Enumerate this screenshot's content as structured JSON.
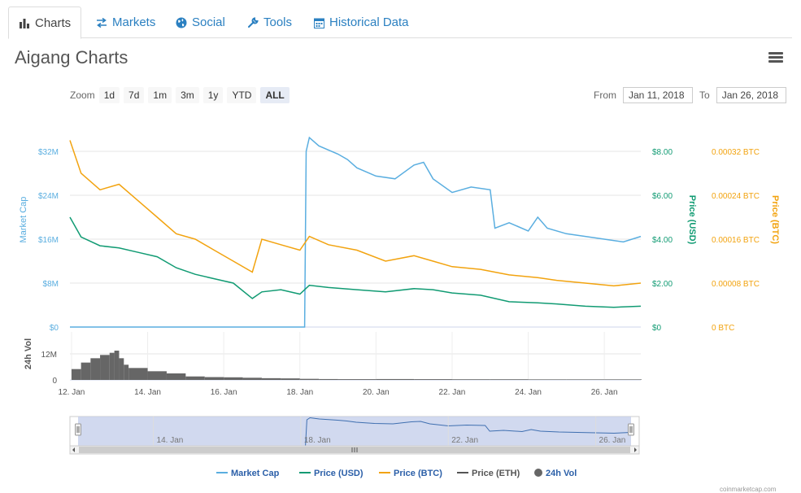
{
  "tabs": [
    {
      "label": "Charts",
      "icon": "bar-chart-icon",
      "active": true
    },
    {
      "label": "Markets",
      "icon": "exchange-arrows-icon",
      "active": false
    },
    {
      "label": "Social",
      "icon": "globe-icon",
      "active": false
    },
    {
      "label": "Tools",
      "icon": "wrench-icon",
      "active": false
    },
    {
      "label": "Historical Data",
      "icon": "calendar-icon",
      "active": false
    }
  ],
  "page_title": "Aigang Charts",
  "zoom": {
    "label": "Zoom",
    "buttons": [
      "1d",
      "7d",
      "1m",
      "3m",
      "1y",
      "YTD",
      "ALL"
    ],
    "selected": "ALL"
  },
  "range": {
    "from_label": "From",
    "from_value": "Jan 11, 2018",
    "to_label": "To",
    "to_value": "Jan 26, 2018"
  },
  "credit": "coinmarketcap.com",
  "colors": {
    "market_cap": "#5aaee0",
    "price_usd": "#119b73",
    "price_btc": "#f2a30f",
    "price_eth": "#555555",
    "volume": "#666666"
  },
  "chart_data": {
    "type": "line",
    "x_axis": {
      "ticks": [
        "12. Jan",
        "14. Jan",
        "16. Jan",
        "18. Jan",
        "20. Jan",
        "22. Jan",
        "24. Jan",
        "26. Jan"
      ],
      "range": [
        "2018-01-11T23:00",
        "2018-01-26T23:00"
      ]
    },
    "y_axes": {
      "market_cap": {
        "label": "Market Cap",
        "ticks": [
          "$0",
          "$8M",
          "$16M",
          "$24M",
          "$32M"
        ],
        "range": [
          0,
          32000000
        ]
      },
      "price_usd": {
        "label": "Price (USD)",
        "ticks": [
          "$0",
          "$2.00",
          "$4.00",
          "$6.00",
          "$8.00"
        ],
        "range": [
          0,
          8
        ]
      },
      "price_btc": {
        "label": "Price (BTC)",
        "ticks": [
          "0 BTC",
          "0.00008 BTC",
          "0.00016 BTC",
          "0.00024 BTC",
          "0.00032 BTC"
        ],
        "range": [
          0,
          0.00032
        ]
      },
      "volume": {
        "label": "24h Vol",
        "ticks": [
          "0",
          "12M"
        ],
        "range": [
          0,
          12000000
        ]
      }
    },
    "series": [
      {
        "name": "Market Cap",
        "axis": "market_cap",
        "points": [
          [
            "2018-01-11T23:00",
            0
          ],
          [
            "2018-01-14T00:00",
            0
          ],
          [
            "2018-01-16T00:00",
            0
          ],
          [
            "2018-01-18T00:00",
            0
          ],
          [
            "2018-01-18T03:00",
            0
          ],
          [
            "2018-01-18T04:00",
            32000000
          ],
          [
            "2018-01-18T06:00",
            34500000
          ],
          [
            "2018-01-18T12:00",
            33000000
          ],
          [
            "2018-01-19T00:00",
            31500000
          ],
          [
            "2018-01-19T06:00",
            30500000
          ],
          [
            "2018-01-19T12:00",
            29000000
          ],
          [
            "2018-01-20T00:00",
            27500000
          ],
          [
            "2018-01-20T12:00",
            27000000
          ],
          [
            "2018-01-21T00:00",
            29500000
          ],
          [
            "2018-01-21T06:00",
            30000000
          ],
          [
            "2018-01-21T12:00",
            27000000
          ],
          [
            "2018-01-22T00:00",
            24500000
          ],
          [
            "2018-01-22T12:00",
            25500000
          ],
          [
            "2018-01-23T00:00",
            25000000
          ],
          [
            "2018-01-23T03:00",
            18000000
          ],
          [
            "2018-01-23T12:00",
            19000000
          ],
          [
            "2018-01-24T00:00",
            17500000
          ],
          [
            "2018-01-24T06:00",
            20000000
          ],
          [
            "2018-01-24T12:00",
            18000000
          ],
          [
            "2018-01-25T00:00",
            17000000
          ],
          [
            "2018-01-25T12:00",
            16500000
          ],
          [
            "2018-01-26T00:00",
            16000000
          ],
          [
            "2018-01-26T12:00",
            15500000
          ],
          [
            "2018-01-26T23:00",
            16500000
          ]
        ]
      },
      {
        "name": "Price (USD)",
        "axis": "price_usd",
        "points": [
          [
            "2018-01-11T23:00",
            5.0
          ],
          [
            "2018-01-12T06:00",
            4.1
          ],
          [
            "2018-01-12T18:00",
            3.7
          ],
          [
            "2018-01-13T06:00",
            3.6
          ],
          [
            "2018-01-13T18:00",
            3.4
          ],
          [
            "2018-01-14T06:00",
            3.2
          ],
          [
            "2018-01-14T18:00",
            2.7
          ],
          [
            "2018-01-15T06:00",
            2.4
          ],
          [
            "2018-01-15T18:00",
            2.2
          ],
          [
            "2018-01-16T06:00",
            2.0
          ],
          [
            "2018-01-16T18:00",
            1.3
          ],
          [
            "2018-01-17T00:00",
            1.6
          ],
          [
            "2018-01-17T12:00",
            1.7
          ],
          [
            "2018-01-18T00:00",
            1.5
          ],
          [
            "2018-01-18T06:00",
            1.9
          ],
          [
            "2018-01-18T18:00",
            1.8
          ],
          [
            "2018-01-19T12:00",
            1.7
          ],
          [
            "2018-01-20T06:00",
            1.6
          ],
          [
            "2018-01-21T00:00",
            1.75
          ],
          [
            "2018-01-21T12:00",
            1.7
          ],
          [
            "2018-01-22T00:00",
            1.55
          ],
          [
            "2018-01-22T18:00",
            1.45
          ],
          [
            "2018-01-23T12:00",
            1.15
          ],
          [
            "2018-01-24T06:00",
            1.1
          ],
          [
            "2018-01-24T18:00",
            1.05
          ],
          [
            "2018-01-25T12:00",
            0.95
          ],
          [
            "2018-01-26T06:00",
            0.9
          ],
          [
            "2018-01-26T23:00",
            0.95
          ]
        ]
      },
      {
        "name": "Price (BTC)",
        "axis": "price_btc",
        "points": [
          [
            "2018-01-11T23:00",
            0.00034
          ],
          [
            "2018-01-12T06:00",
            0.00028
          ],
          [
            "2018-01-12T18:00",
            0.00025
          ],
          [
            "2018-01-13T06:00",
            0.00026
          ],
          [
            "2018-01-13T18:00",
            0.00023
          ],
          [
            "2018-01-14T06:00",
            0.0002
          ],
          [
            "2018-01-14T18:00",
            0.00017
          ],
          [
            "2018-01-15T06:00",
            0.00016
          ],
          [
            "2018-01-15T18:00",
            0.00014
          ],
          [
            "2018-01-16T06:00",
            0.00012
          ],
          [
            "2018-01-16T18:00",
            0.0001
          ],
          [
            "2018-01-17T00:00",
            0.00016
          ],
          [
            "2018-01-17T12:00",
            0.00015
          ],
          [
            "2018-01-18T00:00",
            0.00014
          ],
          [
            "2018-01-18T06:00",
            0.000165
          ],
          [
            "2018-01-18T18:00",
            0.00015
          ],
          [
            "2018-01-19T12:00",
            0.00014
          ],
          [
            "2018-01-20T06:00",
            0.00012
          ],
          [
            "2018-01-21T00:00",
            0.00013
          ],
          [
            "2018-01-21T12:00",
            0.00012
          ],
          [
            "2018-01-22T00:00",
            0.00011
          ],
          [
            "2018-01-22T18:00",
            0.000105
          ],
          [
            "2018-01-23T12:00",
            9.5e-05
          ],
          [
            "2018-01-24T06:00",
            9e-05
          ],
          [
            "2018-01-24T18:00",
            8.5e-05
          ],
          [
            "2018-01-25T12:00",
            8e-05
          ],
          [
            "2018-01-26T06:00",
            7.5e-05
          ],
          [
            "2018-01-26T23:00",
            8e-05
          ]
        ]
      },
      {
        "name": "Price (ETH)",
        "axis": "price_usd",
        "points": []
      },
      {
        "name": "24h Vol",
        "axis": "volume",
        "type": "column",
        "points": [
          [
            "2018-01-12T00:00",
            5000000
          ],
          [
            "2018-01-12T06:00",
            8000000
          ],
          [
            "2018-01-12T12:00",
            10000000
          ],
          [
            "2018-01-12T18:00",
            11500000
          ],
          [
            "2018-01-13T00:00",
            12500000
          ],
          [
            "2018-01-13T03:00",
            13500000
          ],
          [
            "2018-01-13T06:00",
            10000000
          ],
          [
            "2018-01-13T09:00",
            7000000
          ],
          [
            "2018-01-13T12:00",
            5500000
          ],
          [
            "2018-01-14T00:00",
            4000000
          ],
          [
            "2018-01-14T12:00",
            3000000
          ],
          [
            "2018-01-15T00:00",
            1600000
          ],
          [
            "2018-01-15T12:00",
            1300000
          ],
          [
            "2018-01-16T00:00",
            1200000
          ],
          [
            "2018-01-16T12:00",
            1000000
          ],
          [
            "2018-01-17T00:00",
            800000
          ],
          [
            "2018-01-17T12:00",
            700000
          ],
          [
            "2018-01-18T00:00",
            500000
          ],
          [
            "2018-01-18T12:00",
            400000
          ],
          [
            "2018-01-19T00:00",
            350000
          ],
          [
            "2018-01-20T00:00",
            400000
          ],
          [
            "2018-01-21T00:00",
            350000
          ],
          [
            "2018-01-22T00:00",
            300000
          ],
          [
            "2018-01-23T00:00",
            300000
          ],
          [
            "2018-01-24T00:00",
            250000
          ],
          [
            "2018-01-25T00:00",
            250000
          ],
          [
            "2018-01-26T00:00",
            250000
          ],
          [
            "2018-01-26T23:00",
            250000
          ]
        ]
      }
    ],
    "navigator": {
      "ticks": [
        "14. Jan",
        "18. Jan",
        "22. Jan",
        "26. Jan"
      ],
      "selected_range": [
        "2018-01-11T23:00",
        "2018-01-26T23:00"
      ]
    },
    "legend": {
      "placement": "bottom",
      "items": [
        "Market Cap",
        "Price (USD)",
        "Price (BTC)",
        "Price (ETH)",
        "24h Vol"
      ]
    },
    "grid": true
  }
}
